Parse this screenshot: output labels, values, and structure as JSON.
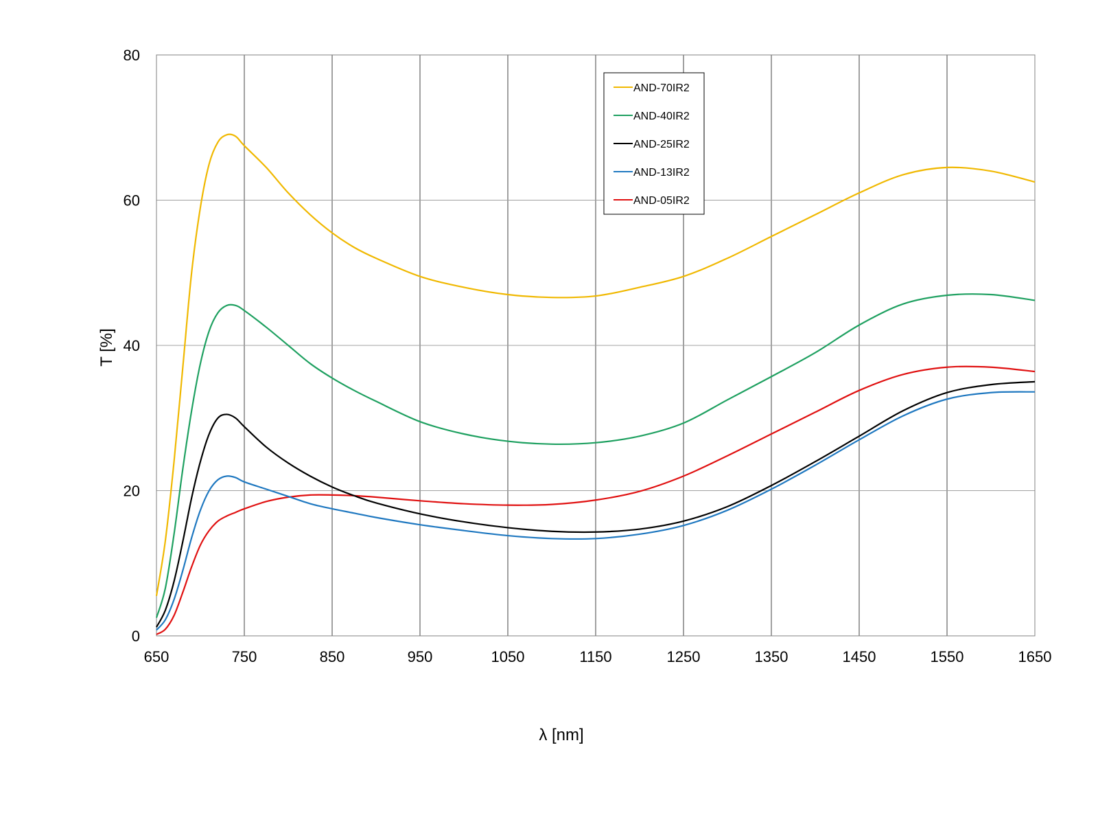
{
  "chart_data": {
    "type": "line",
    "title": "",
    "xlabel": "λ [nm]",
    "ylabel": "T [%]",
    "xlim": [
      650,
      1650
    ],
    "ylim": [
      0,
      80
    ],
    "x_ticks": [
      650,
      750,
      850,
      950,
      1050,
      1150,
      1250,
      1350,
      1450,
      1550,
      1650
    ],
    "y_ticks": [
      0,
      20,
      40,
      60,
      80
    ],
    "grid": true,
    "legend_position": "top-center",
    "x": [
      650,
      660,
      670,
      680,
      690,
      700,
      710,
      720,
      730,
      740,
      750,
      775,
      800,
      825,
      850,
      875,
      900,
      950,
      1000,
      1050,
      1100,
      1150,
      1200,
      1250,
      1300,
      1350,
      1400,
      1450,
      1500,
      1550,
      1600,
      1650
    ],
    "series": [
      {
        "name": "AND-70IR2",
        "color": "#f0b800",
        "values": [
          5.5,
          13,
          24,
          37,
          50,
          59,
          65,
          68,
          69,
          68.8,
          67.5,
          64.5,
          61,
          58,
          55.5,
          53.5,
          52,
          49.5,
          48,
          47,
          46.6,
          46.8,
          48,
          49.5,
          52,
          55,
          58,
          61,
          63.5,
          64.5,
          64,
          62.5
        ]
      },
      {
        "name": "AND-40IR2",
        "color": "#1ea060",
        "values": [
          2.5,
          6.5,
          14,
          23,
          31,
          37.5,
          42,
          44.5,
          45.5,
          45.5,
          44.8,
          42.5,
          40,
          37.5,
          35.5,
          33.8,
          32.3,
          29.5,
          27.8,
          26.8,
          26.4,
          26.6,
          27.5,
          29.3,
          32.5,
          35.7,
          39,
          42.8,
          45.7,
          46.9,
          47,
          46.2
        ]
      },
      {
        "name": "AND-25IR2",
        "color": "#000000",
        "values": [
          1.2,
          3.5,
          7.5,
          13,
          19,
          24,
          27.8,
          30,
          30.5,
          30,
          28.8,
          26,
          23.8,
          22,
          20.5,
          19.3,
          18.3,
          16.8,
          15.7,
          14.9,
          14.4,
          14.3,
          14.7,
          15.8,
          17.8,
          20.7,
          24,
          27.5,
          31,
          33.5,
          34.6,
          35
        ]
      },
      {
        "name": "AND-13IR2",
        "color": "#1f78c0",
        "values": [
          0.8,
          2.2,
          5,
          9,
          13.5,
          17.3,
          20,
          21.5,
          22,
          21.8,
          21.2,
          20.2,
          19.2,
          18.2,
          17.5,
          16.9,
          16.3,
          15.3,
          14.5,
          13.8,
          13.4,
          13.4,
          14,
          15.2,
          17.3,
          20.2,
          23.5,
          27,
          30.3,
          32.6,
          33.5,
          33.6
        ]
      },
      {
        "name": "AND-05IR2",
        "color": "#e01010",
        "values": [
          0.2,
          0.9,
          2.8,
          6,
          9.5,
          12.5,
          14.5,
          15.8,
          16.5,
          17,
          17.5,
          18.5,
          19.1,
          19.4,
          19.4,
          19.3,
          19.1,
          18.6,
          18.2,
          18,
          18.1,
          18.7,
          19.9,
          22,
          24.8,
          27.8,
          30.8,
          33.8,
          36,
          37,
          37,
          36.4
        ]
      }
    ]
  }
}
